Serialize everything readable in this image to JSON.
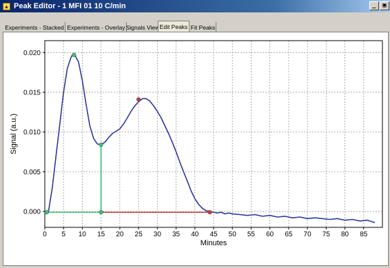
{
  "window": {
    "title": "Peak Editor - 1 MFI 01 10 C/min",
    "minimize_label": "_",
    "restore_label": "▣"
  },
  "tabs": [
    {
      "label": "Experiments - Stacked",
      "active": false
    },
    {
      "label": "Experiments - Overlay",
      "active": false
    },
    {
      "label": "Signals View",
      "active": false
    },
    {
      "label": "Edit Peaks",
      "active": true
    },
    {
      "label": "Fit Peaks",
      "active": false
    }
  ],
  "icons": {
    "app": "peak-editor-app-icon",
    "minimize": "minimize-icon",
    "restore": "restore-icon"
  },
  "colors": {
    "signal": "#2b3a9a",
    "peak1": "#3cc47a",
    "peak2": "#c83c3c",
    "grid": "#9a9a9a"
  },
  "chart_data": {
    "type": "line",
    "title": "",
    "xlabel": "Minutes",
    "ylabel": "Signal (a.u.)",
    "xlim": [
      0,
      90
    ],
    "ylim": [
      -0.002,
      0.0215
    ],
    "x_ticks": [
      "0",
      "5",
      "10",
      "15",
      "20",
      "25",
      "30",
      "35",
      "40",
      "45",
      "50",
      "55",
      "60",
      "65",
      "70",
      "75",
      "80",
      "85"
    ],
    "x_tick_values": [
      0,
      5,
      10,
      15,
      20,
      25,
      30,
      35,
      40,
      45,
      50,
      55,
      60,
      65,
      70,
      75,
      80,
      85
    ],
    "y_ticks": [
      "0.000",
      "0.005",
      "0.010",
      "0.015",
      "0.020"
    ],
    "y_tick_values": [
      0,
      0.005,
      0.01,
      0.015,
      0.02
    ],
    "grid": true,
    "series": [
      {
        "color": "#2b3a9a",
        "x": [
          0,
          1,
          2,
          3,
          4,
          5,
          6,
          7,
          7.5,
          8,
          9,
          10,
          11,
          12,
          13,
          14,
          15,
          16,
          17,
          18,
          19,
          20,
          21,
          22,
          23,
          24,
          25,
          26,
          27,
          28,
          29,
          30,
          31,
          32,
          33,
          34,
          35,
          36,
          37,
          38,
          39,
          40,
          41,
          42,
          43,
          44,
          45,
          46,
          47,
          48,
          49,
          50,
          52,
          54,
          56,
          58,
          60,
          62,
          64,
          66,
          68,
          70,
          72,
          74,
          76,
          78,
          80,
          82,
          84,
          86,
          88
        ],
        "y": [
          -0.0001,
          0,
          0.003,
          0.007,
          0.011,
          0.015,
          0.018,
          0.0194,
          0.0198,
          0.0197,
          0.0188,
          0.0165,
          0.0135,
          0.0108,
          0.0092,
          0.0085,
          0.0084,
          0.0087,
          0.0093,
          0.0098,
          0.0101,
          0.0104,
          0.011,
          0.0118,
          0.0126,
          0.0133,
          0.0138,
          0.0142,
          0.0142,
          0.0139,
          0.0133,
          0.0126,
          0.0118,
          0.0108,
          0.0098,
          0.0087,
          0.0075,
          0.0062,
          0.005,
          0.0038,
          0.0026,
          0.0016,
          0.0009,
          0.0004,
          0.0001,
          0,
          -0.0001,
          -0.0002,
          -0.0001,
          -0.0003,
          -0.0002,
          -0.0003,
          -0.0004,
          -0.0005,
          -0.0004,
          -0.0006,
          -0.0005,
          -0.0007,
          -0.0006,
          -0.0008,
          -0.0007,
          -0.0009,
          -0.0008,
          -0.0009,
          -0.001,
          -0.0009,
          -0.0011,
          -0.001,
          -0.0012,
          -0.0011,
          -0.0014
        ]
      }
    ],
    "peak_markers": [
      {
        "x": 0.5,
        "y": -0.0001,
        "color": "#3cc47a"
      },
      {
        "x": 7.8,
        "y": 0.0197,
        "color": "#3cc47a"
      },
      {
        "x": 15,
        "y": 0.0084,
        "color": "#3cc47a"
      },
      {
        "x": 15,
        "y": -0.0001,
        "color": "#3cc47a"
      },
      {
        "x": 25,
        "y": 0.0141,
        "color": "#c83c3c"
      },
      {
        "x": 44,
        "y": -0.0001,
        "color": "#c83c3c"
      }
    ],
    "baselines": [
      {
        "x1": 0.5,
        "y1": -0.0001,
        "x2": 15,
        "y2": -0.0001,
        "color": "#3cc47a"
      },
      {
        "x1": 15,
        "y1": -0.0001,
        "x2": 44,
        "y2": -0.0001,
        "color": "#c83c3c"
      }
    ],
    "drop_lines": [
      {
        "x": 15,
        "y1": -0.0001,
        "y2": 0.0084,
        "color": "#3cc47a"
      }
    ]
  }
}
